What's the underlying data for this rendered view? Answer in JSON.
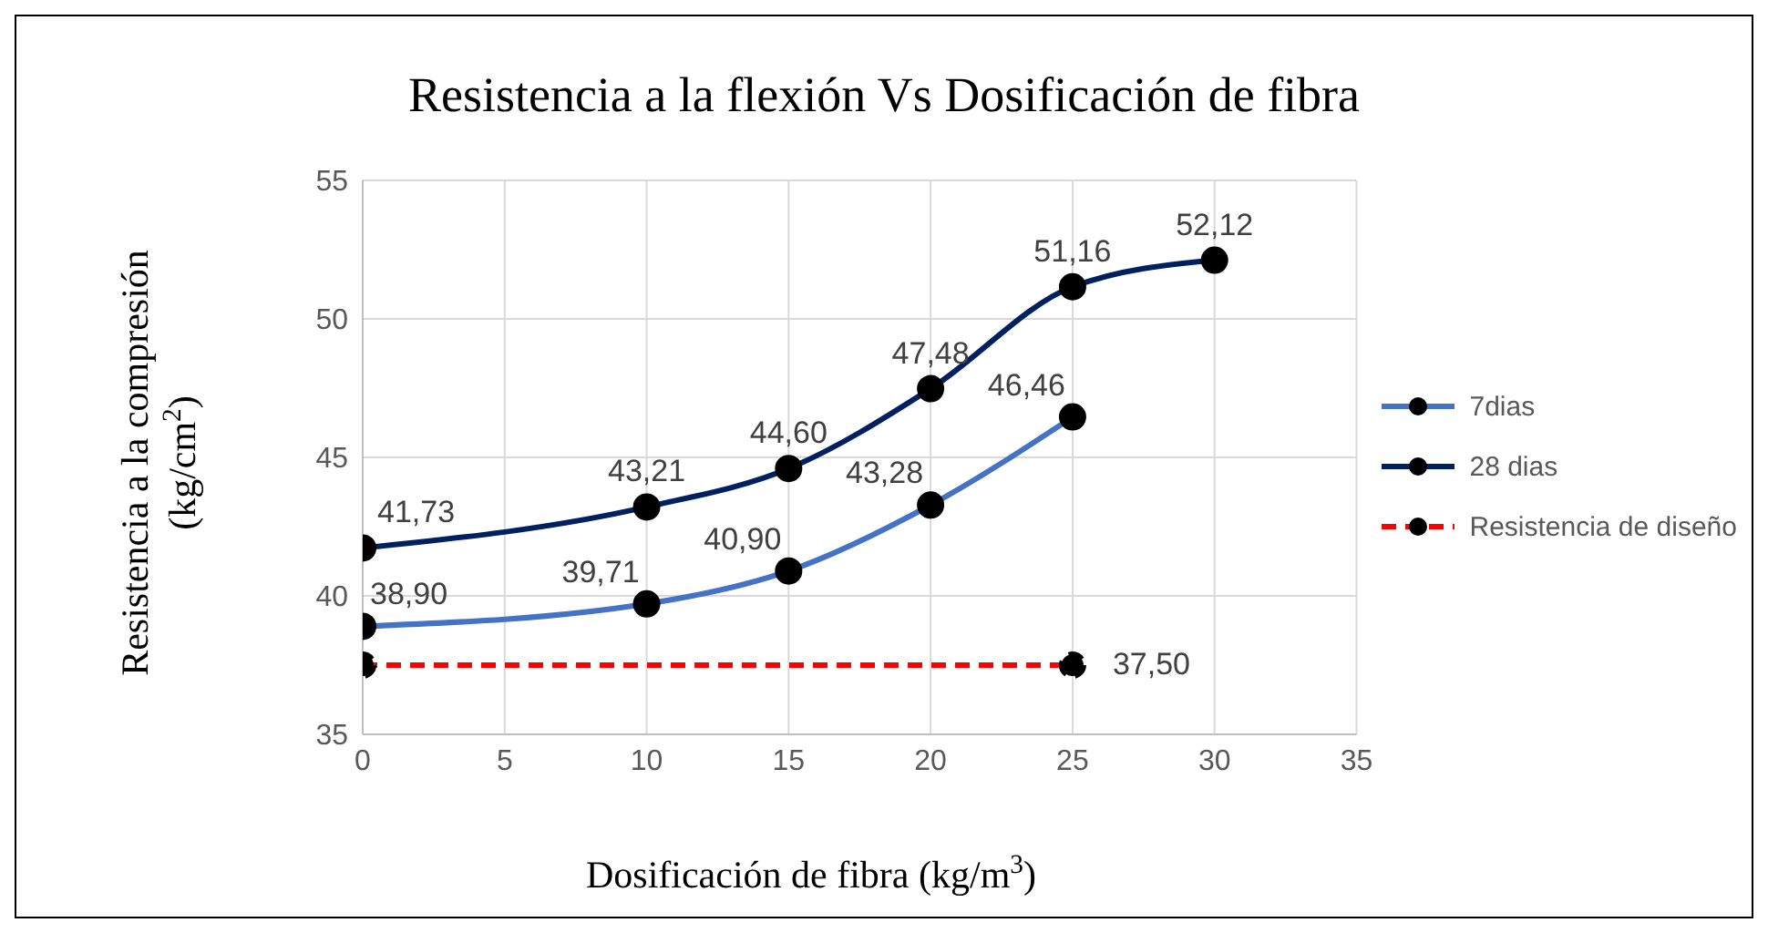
{
  "chart_data": {
    "type": "line",
    "title": "Resistencia a la flexión Vs Dosificación de fibra",
    "xlabel": "Dosificación de fibra (kg/m$^{3}$)",
    "ylabel": "Resistencia a la compresión (kg/cm$^{2}$)",
    "xlim": [
      0,
      35
    ],
    "xticks": [
      0,
      5,
      10,
      15,
      20,
      25,
      30,
      35
    ],
    "ylim": [
      35,
      55
    ],
    "yticks": [
      35,
      40,
      45,
      50,
      55
    ],
    "grid": true,
    "legend": "right",
    "marker": "circle",
    "series": [
      {
        "name": "7dias",
        "color": "#4472c4",
        "x": [
          0,
          10,
          15,
          20,
          25
        ],
        "values": [
          38.9,
          39.71,
          40.9,
          43.28,
          46.46
        ],
        "value_labels": [
          "38,90",
          "39,71",
          "40,90",
          "43,28",
          "46,46"
        ]
      },
      {
        "name": "28 dias",
        "color": "#002060",
        "x": [
          0,
          10,
          15,
          20,
          25,
          30
        ],
        "values": [
          41.73,
          43.21,
          44.6,
          47.48,
          51.16,
          52.12
        ],
        "value_labels": [
          "41,73",
          "43,21",
          "44,60",
          "47,48",
          "51,16",
          "52,12"
        ]
      },
      {
        "name": "Resistencia de diseño",
        "color": "#ff0000",
        "line_style": "dashed",
        "x": [
          0,
          25
        ],
        "values": [
          37.5,
          37.5
        ],
        "value_labels": [
          null,
          "37,50"
        ]
      }
    ]
  }
}
